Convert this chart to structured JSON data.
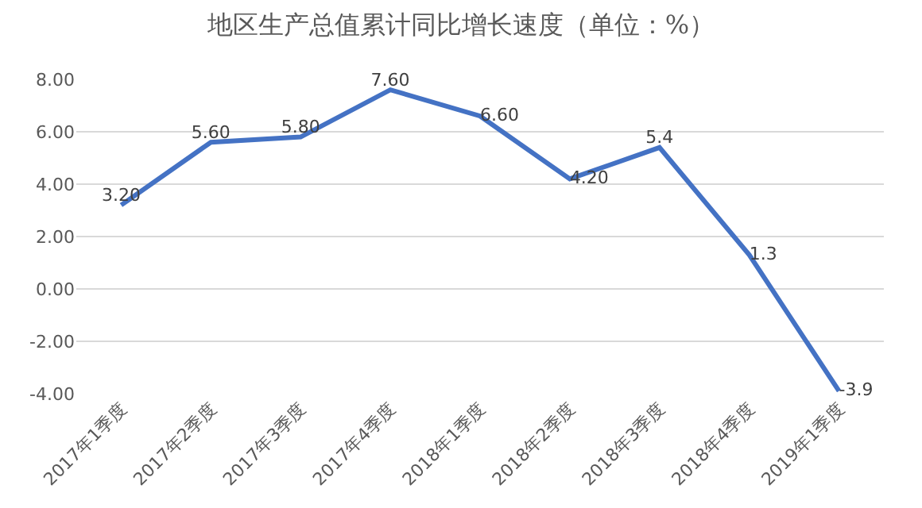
{
  "chart_data": {
    "type": "line",
    "title": "地区生产总值累计同比增长速度（单位：%）",
    "categories": [
      "2017年1季度",
      "2017年2季度",
      "2017年3季度",
      "2017年4季度",
      "2018年1季度",
      "2018年2季度",
      "2018年3季度",
      "2018年4季度",
      "2019年1季度"
    ],
    "series": [
      {
        "color": "#4472c4",
        "values": [
          3.2,
          5.6,
          5.8,
          7.6,
          6.6,
          4.2,
          5.4,
          1.3,
          -3.9
        ],
        "value_labels": [
          "3.20",
          "5.60",
          "5.80",
          "7.60",
          "6.60",
          "4.20",
          "5.4",
          "1.3",
          "-3.9"
        ]
      }
    ],
    "ylim": [
      -4,
      8
    ],
    "yticks": [
      {
        "value": -4,
        "label": "-4.00"
      },
      {
        "value": -2,
        "label": "-2.00"
      },
      {
        "value": 0,
        "label": "0.00"
      },
      {
        "value": 2,
        "label": "2.00"
      },
      {
        "value": 4,
        "label": "4.00"
      },
      {
        "value": 6,
        "label": "6.00"
      },
      {
        "value": 8,
        "label": "8.00"
      }
    ],
    "grid": "y",
    "legend": false,
    "marker": "none",
    "line_style": "solid"
  }
}
